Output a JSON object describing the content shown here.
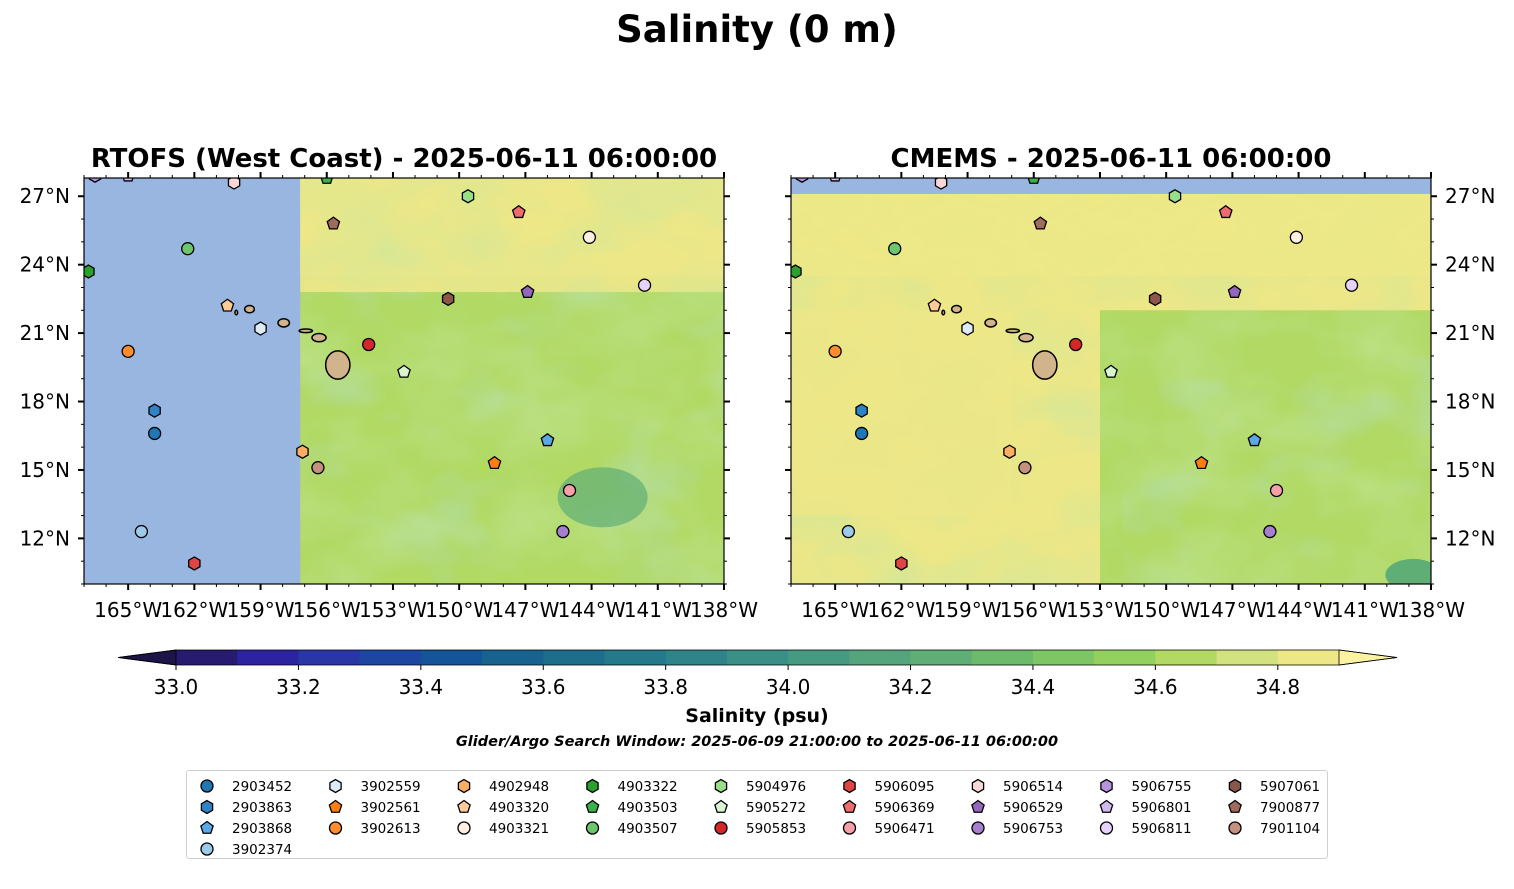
{
  "figure": {
    "suptitle": "Salinity (0 m)",
    "search_window": "Glider/Argo Search Window: 2025-06-09 21:00:00 to 2025-06-11 06:00:00"
  },
  "colors": {
    "land": "#d2b48c",
    "nodata": "#98b6e0",
    "field_levels": [
      {
        "min": 33.0,
        "max": 33.1,
        "color": "#271b6f"
      },
      {
        "min": 33.1,
        "max": 33.2,
        "color": "#2c23a0"
      },
      {
        "min": 33.2,
        "max": 33.3,
        "color": "#2936a6"
      },
      {
        "min": 33.3,
        "max": 33.4,
        "color": "#1d46a0"
      },
      {
        "min": 33.4,
        "max": 33.5,
        "color": "#14559a"
      },
      {
        "min": 33.5,
        "max": 33.6,
        "color": "#17628f"
      },
      {
        "min": 33.6,
        "max": 33.7,
        "color": "#1d6e8b"
      },
      {
        "min": 33.7,
        "max": 33.8,
        "color": "#24798a"
      },
      {
        "min": 33.8,
        "max": 33.9,
        "color": "#2e8488"
      },
      {
        "min": 33.9,
        "max": 34.0,
        "color": "#3a8f86"
      },
      {
        "min": 34.0,
        "max": 34.1,
        "color": "#479a82"
      },
      {
        "min": 34.1,
        "max": 34.2,
        "color": "#55a57c"
      },
      {
        "min": 34.2,
        "max": 34.3,
        "color": "#5fae76"
      },
      {
        "min": 34.3,
        "max": 34.4,
        "color": "#6cba6c"
      },
      {
        "min": 34.4,
        "max": 34.5,
        "color": "#7ec664"
      },
      {
        "min": 34.5,
        "max": 34.6,
        "color": "#92d15e"
      },
      {
        "min": 34.6,
        "max": 34.7,
        "color": "#b1d964"
      },
      {
        "min": 34.7,
        "max": 34.8,
        "color": "#d2e27e"
      },
      {
        "min": 34.8,
        "max": 34.9,
        "color": "#ede787"
      }
    ],
    "extend_under": "#1c1545",
    "extend_over": "#fdf2a2"
  },
  "chart_data": [
    {
      "type": "heatmap",
      "title": "RTOFS (West Coast) - 2025-06-11 06:00:00",
      "model_coverage_lon": [
        -157.2,
        -138
      ],
      "xlim": [
        -167,
        -138
      ],
      "ylim": [
        10,
        27.8
      ],
      "xticks": [
        -165,
        -162,
        -159,
        -156,
        -153,
        -150,
        -147,
        -144,
        -141,
        -138
      ],
      "xtick_labels": [
        "165°W",
        "162°W",
        "159°W",
        "156°W",
        "153°W",
        "150°W",
        "147°W",
        "144°W",
        "141°W",
        "138°W"
      ],
      "yticks": [
        12,
        15,
        18,
        21,
        24,
        27
      ],
      "ytick_labels": [
        "12°N",
        "15°N",
        "18°N",
        "21°N",
        "24°N",
        "27°N"
      ],
      "yaxis_side": "left",
      "grid": false
    },
    {
      "type": "heatmap",
      "title": "CMEMS - 2025-06-11 06:00:00",
      "model_coverage_lat": [
        10,
        27.1
      ],
      "xlim": [
        -167,
        -138
      ],
      "ylim": [
        10,
        27.8
      ],
      "xticks": [
        -165,
        -162,
        -159,
        -156,
        -153,
        -150,
        -147,
        -144,
        -141,
        -138
      ],
      "xtick_labels": [
        "165°W",
        "162°W",
        "159°W",
        "156°W",
        "153°W",
        "150°W",
        "147°W",
        "144°W",
        "141°W",
        "138°W"
      ],
      "yticks": [
        12,
        15,
        18,
        21,
        24,
        27
      ],
      "ytick_labels": [
        "12°N",
        "15°N",
        "18°N",
        "21°N",
        "24°N",
        "27°N"
      ],
      "yaxis_side": "right",
      "grid": false
    }
  ],
  "colorbar": {
    "label": "Salinity (psu)",
    "vmin": 33.0,
    "vmax": 34.9,
    "ticks": [
      33.0,
      33.2,
      33.4,
      33.6,
      33.8,
      34.0,
      34.2,
      34.4,
      34.6,
      34.8
    ],
    "tick_labels": [
      "33.0",
      "33.2",
      "33.4",
      "33.6",
      "33.8",
      "34.0",
      "34.2",
      "34.4",
      "34.6",
      "34.8"
    ],
    "extend": "both"
  },
  "floats": [
    {
      "id": "2903452",
      "marker": "circle",
      "color": "#1f77b4",
      "lon": -163.8,
      "lat": 16.6
    },
    {
      "id": "2903863",
      "marker": "hexagon",
      "color": "#2f83c4",
      "lon": -163.8,
      "lat": 17.6
    },
    {
      "id": "2903868",
      "marker": "pentagon",
      "color": "#5aa9e6",
      "lon": -146.0,
      "lat": 16.3
    },
    {
      "id": "3902374",
      "marker": "circle",
      "color": "#9ecae9",
      "lon": -164.4,
      "lat": 12.3
    },
    {
      "id": "3902559",
      "marker": "hexagon",
      "color": "#deebf7",
      "lon": -159.0,
      "lat": 21.2
    },
    {
      "id": "3902561",
      "marker": "pentagon",
      "color": "#ff7f0e",
      "lon": -148.4,
      "lat": 15.3
    },
    {
      "id": "3902613",
      "marker": "circle",
      "color": "#ff8c2e",
      "lon": -165.0,
      "lat": 20.2
    },
    {
      "id": "4902948",
      "marker": "hexagon",
      "color": "#ffad62",
      "lon": -157.1,
      "lat": 15.8
    },
    {
      "id": "4903320",
      "marker": "pentagon",
      "color": "#ffcc99",
      "lon": -160.5,
      "lat": 22.2
    },
    {
      "id": "4903321",
      "marker": "circle",
      "color": "#fff0e0",
      "lon": -144.1,
      "lat": 25.2
    },
    {
      "id": "4903322",
      "marker": "hexagon",
      "color": "#2ca02c",
      "lon": -166.8,
      "lat": 23.7
    },
    {
      "id": "4903503",
      "marker": "pentagon",
      "color": "#3cb04a",
      "lon": -156.0,
      "lat": 27.8
    },
    {
      "id": "4903507",
      "marker": "circle",
      "color": "#6cc66c",
      "lon": -162.3,
      "lat": 24.7
    },
    {
      "id": "5904976",
      "marker": "hexagon",
      "color": "#98df8a",
      "lon": -149.6,
      "lat": 27.0
    },
    {
      "id": "5905272",
      "marker": "pentagon",
      "color": "#d8f5d0",
      "lon": -152.5,
      "lat": 19.3
    },
    {
      "id": "5905853",
      "marker": "circle",
      "color": "#d62728",
      "lon": -154.1,
      "lat": 20.5
    },
    {
      "id": "5906095",
      "marker": "hexagon",
      "color": "#e04545",
      "lon": -162.0,
      "lat": 10.9
    },
    {
      "id": "5906369",
      "marker": "pentagon",
      "color": "#f06a72",
      "lon": -147.3,
      "lat": 26.3
    },
    {
      "id": "5906471",
      "marker": "circle",
      "color": "#f4a0a6",
      "lon": -145.0,
      "lat": 14.1
    },
    {
      "id": "5906514",
      "marker": "hexagon",
      "color": "#fbd6d8",
      "lon": -160.2,
      "lat": 27.6
    },
    {
      "id": "5906529",
      "marker": "pentagon",
      "color": "#9467bd",
      "lon": -146.9,
      "lat": 22.8
    },
    {
      "id": "5906753",
      "marker": "circle",
      "color": "#a67fd0",
      "lon": -145.3,
      "lat": 12.3
    },
    {
      "id": "5906755",
      "marker": "hexagon",
      "color": "#b794e0",
      "lon": -166.5,
      "lat": 27.9
    },
    {
      "id": "5906801",
      "marker": "pentagon",
      "color": "#d4b8f0",
      "lon": -165.0,
      "lat": 27.9
    },
    {
      "id": "5906811",
      "marker": "circle",
      "color": "#e6d2fa",
      "lon": -141.6,
      "lat": 23.1
    },
    {
      "id": "5907061",
      "marker": "hexagon",
      "color": "#8c564b",
      "lon": -150.5,
      "lat": 22.5
    },
    {
      "id": "7900877",
      "marker": "pentagon",
      "color": "#a06a5c",
      "lon": -155.7,
      "lat": 25.8
    },
    {
      "id": "7901104",
      "marker": "circle",
      "color": "#c49080",
      "lon": -156.4,
      "lat": 15.1
    }
  ]
}
